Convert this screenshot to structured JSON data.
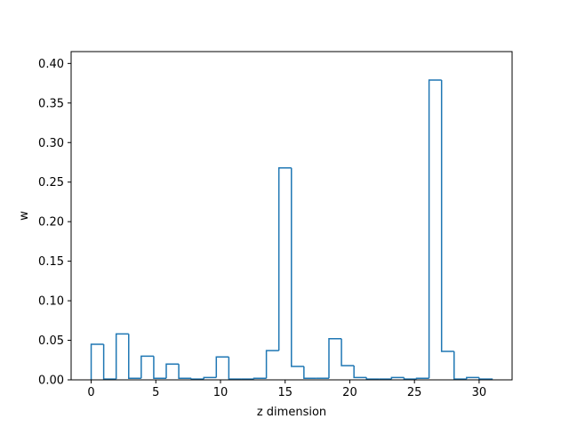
{
  "chart_data": {
    "type": "bar",
    "style": "step",
    "title": "",
    "xlabel": "z dimension",
    "ylabel": "w",
    "xlim": [
      -1.55,
      32.55
    ],
    "ylim": [
      0,
      0.415
    ],
    "xticks": [
      0,
      5,
      10,
      15,
      20,
      25,
      30
    ],
    "yticks": [
      0.0,
      0.05,
      0.1,
      0.15,
      0.2,
      0.25,
      0.3,
      0.35,
      0.4
    ],
    "bin_edges": [
      0,
      0.968,
      1.935,
      2.903,
      3.871,
      4.839,
      5.806,
      6.774,
      7.742,
      8.71,
      9.677,
      10.645,
      11.613,
      12.581,
      13.548,
      14.516,
      15.484,
      16.452,
      17.419,
      18.387,
      19.355,
      20.323,
      21.29,
      22.258,
      23.226,
      24.194,
      25.161,
      26.129,
      27.097,
      28.065,
      29.032,
      30.0,
      31.0
    ],
    "values": [
      0.045,
      0.001,
      0.058,
      0.002,
      0.03,
      0.002,
      0.02,
      0.002,
      0.001,
      0.003,
      0.029,
      0.001,
      0.001,
      0.002,
      0.037,
      0.268,
      0.017,
      0.002,
      0.002,
      0.052,
      0.018,
      0.003,
      0.001,
      0.001,
      0.003,
      0.001,
      0.002,
      0.379,
      0.036,
      0.001,
      0.003,
      0.001
    ],
    "grid": false,
    "legend": "none",
    "colors": {
      "series": "#1f77b4",
      "axes": "#000000",
      "background": "#ffffff"
    }
  }
}
